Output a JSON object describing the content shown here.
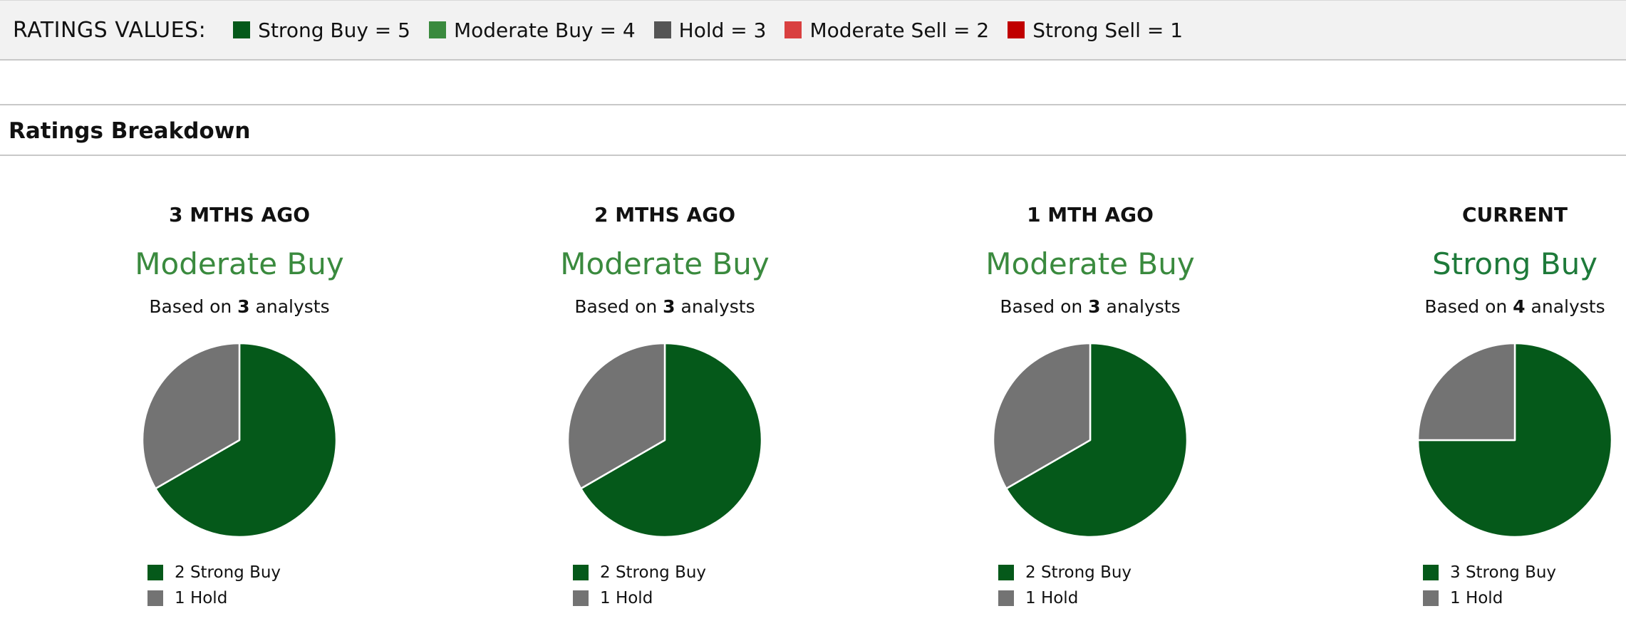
{
  "ratings_legend": {
    "title": "RATINGS VALUES:",
    "items": [
      {
        "label": "Strong Buy = 5",
        "color": "#05591a"
      },
      {
        "label": "Moderate Buy = 4",
        "color": "#3a8a3e"
      },
      {
        "label": "Hold = 3",
        "color": "#555555"
      },
      {
        "label": "Moderate Sell = 2",
        "color": "#d94040"
      },
      {
        "label": "Strong Sell = 1",
        "color": "#c00000"
      }
    ]
  },
  "section_title": "Ratings Breakdown",
  "colors": {
    "strong_buy": "#05591a",
    "hold": "#737373"
  },
  "chart_data": [
    {
      "type": "pie",
      "title": "3 MTHS AGO",
      "consensus": "Moderate Buy",
      "based_prefix": "Based on",
      "analysts": "3",
      "based_suffix": "analysts",
      "slices": [
        {
          "label": "Strong Buy",
          "value": 2,
          "legend": "2 Strong Buy",
          "color": "#05591a"
        },
        {
          "label": "Hold",
          "value": 1,
          "legend": "1 Hold",
          "color": "#737373"
        }
      ]
    },
    {
      "type": "pie",
      "title": "2 MTHS AGO",
      "consensus": "Moderate Buy",
      "based_prefix": "Based on",
      "analysts": "3",
      "based_suffix": "analysts",
      "slices": [
        {
          "label": "Strong Buy",
          "value": 2,
          "legend": "2 Strong Buy",
          "color": "#05591a"
        },
        {
          "label": "Hold",
          "value": 1,
          "legend": "1 Hold",
          "color": "#737373"
        }
      ]
    },
    {
      "type": "pie",
      "title": "1 MTH AGO",
      "consensus": "Moderate Buy",
      "based_prefix": "Based on",
      "analysts": "3",
      "based_suffix": "analysts",
      "slices": [
        {
          "label": "Strong Buy",
          "value": 2,
          "legend": "2 Strong Buy",
          "color": "#05591a"
        },
        {
          "label": "Hold",
          "value": 1,
          "legend": "1 Hold",
          "color": "#737373"
        }
      ]
    },
    {
      "type": "pie",
      "title": "CURRENT",
      "consensus": "Strong Buy",
      "based_prefix": "Based on",
      "analysts": "4",
      "based_suffix": "analysts",
      "slices": [
        {
          "label": "Strong Buy",
          "value": 3,
          "legend": "3 Strong Buy",
          "color": "#05591a"
        },
        {
          "label": "Hold",
          "value": 1,
          "legend": "1 Hold",
          "color": "#737373"
        }
      ]
    }
  ]
}
